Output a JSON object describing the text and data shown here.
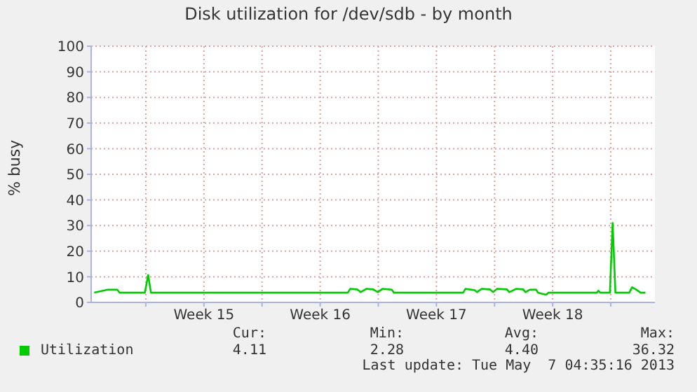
{
  "chart_data": {
    "type": "line",
    "title": "Disk utilization for /dev/sdb - by month",
    "ylabel": "% busy",
    "x": [
      "2013-04-04T21:24",
      "2013-04-05T17:24",
      "2013-04-06T06:42",
      "2013-04-06T10:00",
      "2013-04-07T22:40",
      "2013-04-08T03:24",
      "2013-04-08T07:24",
      "2013-04-20T04:00",
      "2013-04-20T07:18",
      "2013-04-20T17:18",
      "2013-04-20T22:36",
      "2013-04-21T06:42",
      "2013-04-21T16:36",
      "2013-04-21T23:18",
      "2013-04-22T06:00",
      "2013-04-22T19:18",
      "2013-04-22T22:42",
      "2013-04-27T02:36",
      "2013-04-27T06:00",
      "2013-04-27T19:18",
      "2013-04-27T22:36",
      "2013-04-28T05:24",
      "2013-04-28T17:18",
      "2013-04-28T22:00",
      "2013-04-29T03:24",
      "2013-04-29T18:00",
      "2013-04-29T21:18",
      "2013-04-30T07:24",
      "2013-04-30T17:18",
      "2013-04-30T20:42",
      "2013-05-01T03:24",
      "2013-05-01T12:00",
      "2013-05-01T14:42",
      "2013-05-01T20:00",
      "2013-05-02T02:36",
      "2013-05-02T06:00",
      "2013-05-05T04:00",
      "2013-05-05T06:00",
      "2013-05-05T08:42",
      "2013-05-05T22:42",
      "2013-05-06T02:42",
      "2013-05-06T06:42",
      "2013-05-07T02:42",
      "2013-05-07T06:42",
      "2013-05-07T12:36",
      "2013-05-07T19:18",
      "2013-05-08T02:06"
    ],
    "series": [
      {
        "name": "Utilization",
        "color": "#00cc00",
        "values": [
          3.8,
          5.0,
          5.0,
          3.8,
          3.8,
          10.7,
          3.8,
          3.8,
          5.3,
          5.1,
          4.0,
          5.3,
          5.1,
          4.0,
          5.3,
          5.0,
          3.8,
          3.8,
          5.3,
          4.8,
          4.0,
          5.3,
          5.1,
          4.0,
          5.3,
          5.1,
          4.0,
          5.3,
          5.1,
          4.0,
          5.0,
          5.0,
          3.8,
          3.4,
          3.0,
          3.8,
          3.8,
          4.6,
          3.8,
          3.8,
          31,
          3.8,
          3.8,
          5.9,
          5.0,
          3.8,
          3.8
        ]
      }
    ],
    "xlim": [
      "2013-04-04T17:00",
      "2013-05-08T15:48"
    ],
    "xticks": [
      {
        "value": "2013-04-08",
        "label": null
      },
      {
        "value": "2013-04-11T12:00",
        "label": "Week 15"
      },
      {
        "value": "2013-04-15",
        "label": null
      },
      {
        "value": "2013-04-18T12:00",
        "label": "Week 16"
      },
      {
        "value": "2013-04-22",
        "label": null
      },
      {
        "value": "2013-04-25T12:00",
        "label": "Week 17"
      },
      {
        "value": "2013-04-29",
        "label": null
      },
      {
        "value": "2013-05-02T12:00",
        "label": "Week 18"
      },
      {
        "value": "2013-05-06",
        "label": null
      }
    ],
    "ylim": [
      0,
      100
    ],
    "yticks": [
      0,
      10,
      20,
      30,
      40,
      50,
      60,
      70,
      80,
      90,
      100
    ],
    "grid": true,
    "legend": "bottom",
    "marker": "none",
    "line_style": "solid",
    "annotations": [
      "Cur:",
      "4.11",
      "Min:",
      "2.28",
      "Avg:",
      "4.40",
      "Max:",
      "36.32",
      "Last update: Tue May  7 04:35:16 2013"
    ]
  }
}
